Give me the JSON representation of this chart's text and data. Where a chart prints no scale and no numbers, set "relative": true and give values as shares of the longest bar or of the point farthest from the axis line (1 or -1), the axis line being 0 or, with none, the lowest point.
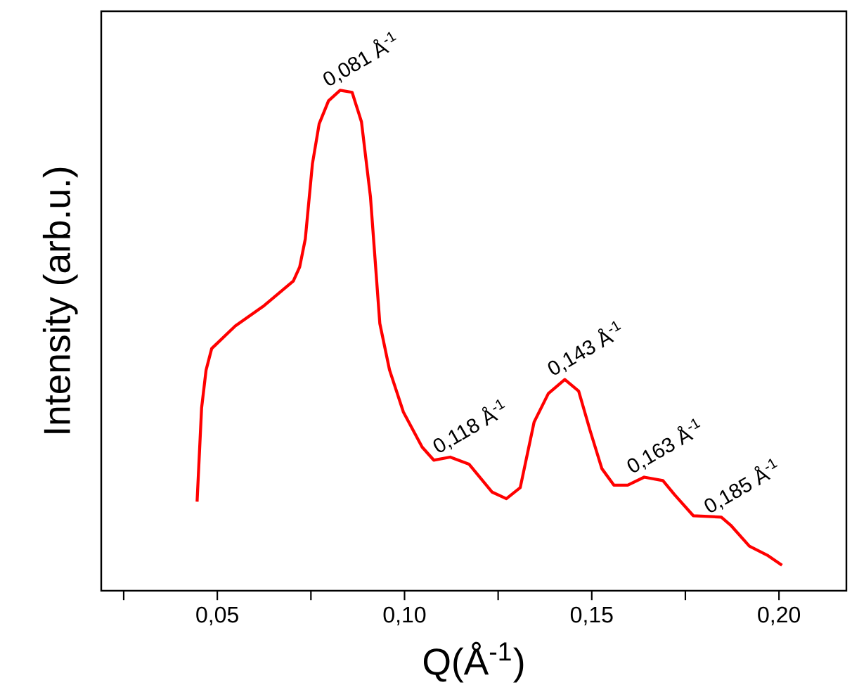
{
  "chart_data": {
    "type": "line",
    "relative": true,
    "xlabel": "Q(Å$^{-1}$)",
    "ylabel": "Intensity (arb.u.)",
    "xlim": [
      0.019,
      0.218
    ],
    "xticks": [
      {
        "value": 0.025,
        "label": null
      },
      {
        "value": 0.05,
        "label": "0,05"
      },
      {
        "value": 0.075,
        "label": null
      },
      {
        "value": 0.1,
        "label": "0,10"
      },
      {
        "value": 0.125,
        "label": null
      },
      {
        "value": 0.15,
        "label": "0,15"
      },
      {
        "value": 0.175,
        "label": null
      },
      {
        "value": 0.2,
        "label": "0,20"
      }
    ],
    "tick_labels": "x",
    "grid": false,
    "marker": "none",
    "line_style": "solid",
    "series": [
      {
        "color": "#ff0000",
        "x": [
          0.0446,
          0.0458,
          0.047,
          0.0485,
          0.0548,
          0.0622,
          0.0703,
          0.072,
          0.0735,
          0.0754,
          0.0772,
          0.0797,
          0.0828,
          0.086,
          0.0885,
          0.0909,
          0.0934,
          0.096,
          0.0997,
          0.1047,
          0.1078,
          0.1122,
          0.1172,
          0.1234,
          0.1272,
          0.1309,
          0.1346,
          0.1384,
          0.1428,
          0.1465,
          0.1496,
          0.1527,
          0.1559,
          0.1596,
          0.164,
          0.169,
          0.1721,
          0.1771,
          0.1846,
          0.1871,
          0.1921,
          0.1971,
          0.2008
        ],
        "values": [
          0.178,
          0.365,
          0.441,
          0.484,
          0.529,
          0.568,
          0.619,
          0.647,
          0.703,
          0.853,
          0.933,
          0.979,
          1,
          0.996,
          0.937,
          0.787,
          0.534,
          0.441,
          0.357,
          0.287,
          0.261,
          0.267,
          0.253,
          0.197,
          0.184,
          0.206,
          0.337,
          0.394,
          0.422,
          0.399,
          0.319,
          0.244,
          0.211,
          0.211,
          0.227,
          0.22,
          0.192,
          0.15,
          0.147,
          0.131,
          0.089,
          0.07,
          0.051
        ]
      }
    ],
    "annotations": [
      {
        "text": "0,081 Å$^{-1}$",
        "x": 0.0828,
        "y": 1
      },
      {
        "text": "0,118 Å$^{-1}$",
        "x": 0.1122,
        "y": 0.267
      },
      {
        "text": "0,143 Å$^{-1}$",
        "x": 0.1428,
        "y": 0.422
      },
      {
        "text": "0,163 Å$^{-1}$",
        "x": 0.164,
        "y": 0.227
      },
      {
        "text": "0,185 Å$^{-1}$",
        "x": 0.1846,
        "y": 0.147
      }
    ]
  }
}
